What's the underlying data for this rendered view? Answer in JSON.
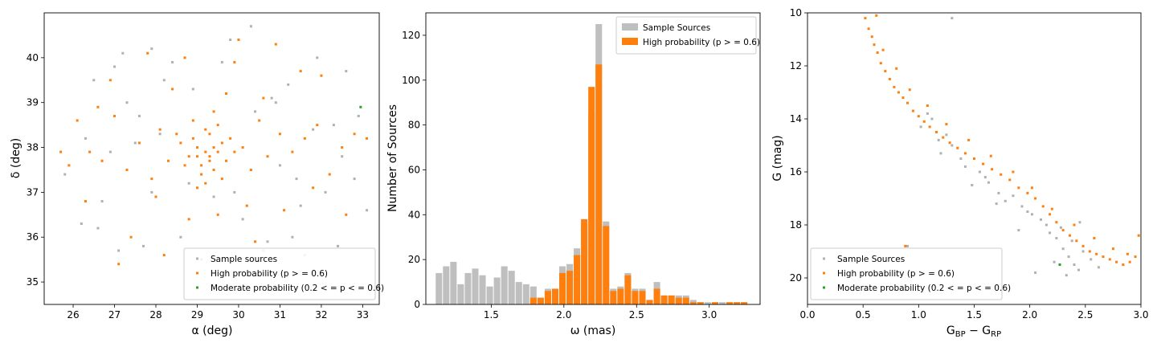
{
  "chart_data": [
    {
      "type": "scatter",
      "xlim": [
        25.3,
        33.4
      ],
      "ylim": [
        34.5,
        41.0
      ],
      "xticks": [
        26,
        27,
        28,
        29,
        30,
        31,
        32,
        33
      ],
      "yticks": [
        35,
        36,
        37,
        38,
        39,
        40
      ],
      "xlabel": "α (deg)",
      "ylabel": "δ (deg)",
      "legend_position": "lower-right",
      "series": [
        {
          "name": "Sample sources",
          "color": "#b0b0b0",
          "x": [
            25.8,
            26.2,
            26.5,
            26.6,
            26.9,
            27.1,
            27.3,
            27.5,
            27.7,
            27.9,
            28.2,
            28.6,
            28.8,
            29.1,
            29.6,
            30.1,
            30.4,
            30.7,
            31.0,
            31.2,
            31.5,
            31.8,
            32.1,
            32.4,
            32.6,
            32.9,
            33.1,
            26.3,
            27.0,
            27.9,
            28.9,
            29.8,
            30.3,
            30.8,
            31.3,
            31.9,
            32.3,
            32.8,
            26.7,
            27.6,
            28.4,
            29.4,
            30.9,
            31.6,
            32.5,
            27.2,
            29.9,
            30.6,
            31.4,
            28.1
          ],
          "y": [
            37.4,
            36.3,
            39.5,
            36.2,
            37.9,
            35.7,
            39.0,
            38.1,
            35.8,
            37.0,
            39.5,
            36.0,
            37.2,
            35.5,
            39.9,
            36.4,
            38.8,
            35.9,
            37.6,
            39.4,
            36.7,
            38.4,
            37.0,
            35.8,
            39.7,
            38.7,
            36.6,
            38.2,
            39.8,
            40.2,
            39.3,
            40.4,
            40.7,
            39.1,
            36.0,
            40.0,
            38.5,
            37.3,
            36.8,
            38.7,
            39.9,
            36.9,
            39.0,
            35.6,
            37.8,
            40.1,
            37.0,
            35.7,
            37.3,
            38.3
          ]
        },
        {
          "name": "High probability (p > = 0.6)",
          "color": "#ff7f0e",
          "x": [
            29.2,
            29.4,
            29.0,
            29.3,
            29.6,
            28.9,
            29.1,
            29.5,
            29.3,
            28.8,
            29.7,
            29.2,
            29.0,
            29.4,
            28.6,
            29.8,
            29.1,
            29.3,
            28.7,
            29.5,
            29.9,
            28.5,
            29.2,
            29.6,
            28.9,
            30.1,
            28.3,
            29.4,
            30.3,
            28.1,
            29.0,
            30.5,
            27.9,
            29.7,
            30.7,
            27.6,
            31.0,
            27.3,
            31.3,
            27.0,
            31.6,
            26.7,
            31.9,
            26.4,
            32.2,
            26.1,
            32.5,
            25.9,
            32.8,
            25.7,
            33.1,
            28.0,
            30.2,
            28.4,
            30.6,
            29.5,
            28.8,
            30.0,
            27.8,
            31.1,
            26.9,
            32.0,
            28.2,
            30.4,
            27.4,
            31.5,
            26.3,
            32.6,
            29.9,
            28.7,
            27.1,
            31.8,
            26.6,
            30.9
          ],
          "y": [
            37.9,
            38.0,
            37.8,
            37.7,
            38.1,
            38.2,
            37.6,
            37.9,
            38.3,
            37.8,
            37.7,
            38.4,
            38.0,
            37.5,
            38.1,
            38.2,
            37.4,
            37.8,
            37.6,
            38.5,
            37.9,
            38.3,
            37.2,
            37.3,
            38.6,
            38.0,
            37.7,
            38.8,
            37.5,
            38.4,
            37.1,
            38.6,
            37.3,
            39.2,
            37.8,
            38.1,
            38.3,
            37.5,
            37.9,
            38.7,
            38.2,
            37.7,
            38.5,
            37.9,
            37.4,
            38.6,
            38.0,
            37.6,
            38.3,
            37.9,
            38.2,
            36.9,
            36.7,
            39.3,
            39.1,
            36.5,
            36.4,
            40.4,
            40.1,
            36.6,
            39.5,
            39.6,
            35.6,
            35.9,
            36.0,
            39.7,
            36.8,
            36.5,
            39.9,
            40.0,
            35.4,
            37.1,
            38.9,
            40.3
          ]
        },
        {
          "name": "Moderate probability (0.2 < = p < = 0.6)",
          "color": "#2ca02c",
          "x": [
            32.95
          ],
          "y": [
            38.9
          ]
        }
      ]
    },
    {
      "type": "bar",
      "xlim": [
        1.05,
        3.35
      ],
      "ylim": [
        0,
        130
      ],
      "xticks": [
        1.5,
        2.0,
        2.5,
        3.0
      ],
      "yticks": [
        0,
        20,
        40,
        60,
        80,
        100,
        120
      ],
      "xlabel": "ω (mas)",
      "ylabel": "Number of Sources",
      "legend_position": "top-right",
      "bin_width": 0.05,
      "bin_centers": [
        1.14,
        1.19,
        1.24,
        1.29,
        1.34,
        1.39,
        1.44,
        1.49,
        1.54,
        1.59,
        1.64,
        1.69,
        1.74,
        1.79,
        1.84,
        1.89,
        1.94,
        1.99,
        2.04,
        2.09,
        2.14,
        2.19,
        2.24,
        2.29,
        2.34,
        2.39,
        2.44,
        2.49,
        2.54,
        2.59,
        2.64,
        2.69,
        2.74,
        2.79,
        2.84,
        2.89,
        2.94,
        2.99,
        3.04,
        3.09,
        3.14,
        3.19,
        3.24
      ],
      "series": [
        {
          "name": "Sample Sources",
          "color": "#bfbfbf",
          "values": [
            14,
            17,
            19,
            9,
            14,
            16,
            13,
            8,
            12,
            17,
            15,
            10,
            9,
            8,
            3,
            7,
            7,
            17,
            18,
            25,
            36,
            85,
            125,
            37,
            7,
            8,
            14,
            7,
            7,
            2,
            10,
            4,
            4,
            4,
            4,
            2,
            1,
            1,
            1,
            1,
            1,
            1,
            1
          ]
        },
        {
          "name": "High probability (p > = 0.6)",
          "color": "#ff7f0e",
          "values": [
            0,
            0,
            0,
            0,
            0,
            0,
            0,
            0,
            0,
            0,
            0,
            0,
            0,
            3,
            3,
            6,
            7,
            14,
            15,
            22,
            38,
            97,
            107,
            35,
            6,
            7,
            13,
            6,
            6,
            2,
            7,
            4,
            4,
            3,
            3,
            1,
            1,
            0,
            1,
            0,
            1,
            1,
            1
          ]
        }
      ]
    },
    {
      "type": "scatter",
      "xlim": [
        0.0,
        3.0
      ],
      "ylim": [
        21.0,
        10.0
      ],
      "y_inverted": true,
      "xticks": [
        0.0,
        0.5,
        1.0,
        1.5,
        2.0,
        2.5,
        3.0
      ],
      "yticks": [
        10,
        12,
        14,
        16,
        18,
        20
      ],
      "xlabel": "G_BP − G_RP",
      "ylabel": "G (mag)",
      "legend_position": "lower-left",
      "series": [
        {
          "name": "Sample Sources",
          "color": "#b0b0b0",
          "x": [
            1.3,
            1.02,
            1.12,
            1.2,
            1.3,
            1.42,
            1.55,
            1.63,
            1.72,
            1.85,
            1.93,
            2.02,
            2.1,
            2.18,
            2.24,
            2.3,
            2.35,
            2.4,
            2.44,
            1.18,
            1.38,
            1.6,
            1.78,
            1.98,
            2.15,
            2.28,
            2.38,
            2.48,
            2.55,
            2.62,
            1.08,
            1.25,
            1.48,
            1.7,
            1.9,
            2.05,
            2.22,
            2.33,
            0.9,
            2.45
          ],
          "y": [
            10.2,
            14.3,
            14.0,
            15.3,
            15.0,
            15.8,
            16.0,
            16.4,
            16.8,
            16.9,
            17.3,
            17.6,
            17.8,
            18.3,
            18.5,
            18.9,
            19.2,
            19.5,
            19.7,
            14.8,
            15.5,
            16.2,
            17.1,
            17.5,
            18.0,
            18.1,
            18.6,
            19.0,
            19.3,
            19.6,
            13.8,
            14.6,
            16.5,
            17.2,
            18.2,
            19.8,
            19.4,
            19.9,
            18.8,
            17.9
          ]
        },
        {
          "name": "High probability (p > = 0.6)",
          "color": "#ff7f0e",
          "x": [
            0.52,
            0.55,
            0.58,
            0.6,
            0.63,
            0.66,
            0.7,
            0.74,
            0.78,
            0.82,
            0.86,
            0.9,
            0.95,
            1.0,
            1.05,
            1.1,
            1.16,
            1.22,
            1.28,
            1.35,
            1.42,
            1.5,
            1.58,
            1.66,
            1.74,
            1.82,
            1.9,
            1.98,
            2.05,
            2.12,
            2.18,
            2.24,
            2.3,
            2.36,
            2.42,
            2.48,
            2.54,
            2.6,
            2.66,
            2.72,
            2.78,
            2.84,
            2.9,
            2.95,
            0.62,
            0.68,
            0.8,
            0.92,
            1.08,
            1.25,
            1.45,
            1.65,
            1.85,
            2.02,
            2.2,
            2.4,
            2.58,
            2.75,
            2.88,
            2.98,
            0.88
          ],
          "y": [
            10.2,
            10.6,
            10.9,
            11.2,
            11.5,
            11.9,
            12.2,
            12.5,
            12.8,
            13.0,
            13.2,
            13.4,
            13.7,
            13.9,
            14.1,
            14.3,
            14.5,
            14.7,
            14.9,
            15.1,
            15.3,
            15.5,
            15.7,
            15.9,
            16.1,
            16.3,
            16.6,
            16.8,
            17.0,
            17.3,
            17.6,
            17.9,
            18.2,
            18.4,
            18.6,
            18.8,
            19.0,
            19.1,
            19.2,
            19.3,
            19.4,
            19.5,
            19.4,
            19.2,
            10.1,
            11.4,
            12.1,
            12.9,
            13.5,
            14.2,
            14.8,
            15.4,
            16.0,
            16.6,
            17.4,
            18.0,
            18.5,
            18.9,
            19.1,
            18.4,
            18.8
          ]
        },
        {
          "name": "Moderate probability (0.2 < = p < = 0.6)",
          "color": "#2ca02c",
          "x": [
            2.27
          ],
          "y": [
            19.5
          ]
        }
      ]
    }
  ],
  "panels": [
    {
      "xlabel": "α (deg)",
      "ylabel": "δ (deg)",
      "legend": [
        {
          "label": "Sample sources",
          "color": "#b0b0b0"
        },
        {
          "label": "High probability (p > = 0.6)",
          "color": "#ff7f0e"
        },
        {
          "label": "Moderate probability (0.2 < = p < = 0.6)",
          "color": "#2ca02c"
        }
      ]
    },
    {
      "xlabel": "ω (mas)",
      "ylabel": "Number of Sources",
      "legend": [
        {
          "label": "Sample Sources",
          "color": "#bfbfbf"
        },
        {
          "label": "High probability (p > = 0.6)",
          "color": "#ff7f0e"
        }
      ]
    },
    {
      "xlabel": "G_BP − G_RP",
      "ylabel": "G (mag)",
      "legend": [
        {
          "label": "Sample Sources",
          "color": "#b0b0b0"
        },
        {
          "label": "High probability (p > = 0.6)",
          "color": "#ff7f0e"
        },
        {
          "label": "Moderate probability (0.2 < = p < = 0.6)",
          "color": "#2ca02c"
        }
      ]
    }
  ]
}
